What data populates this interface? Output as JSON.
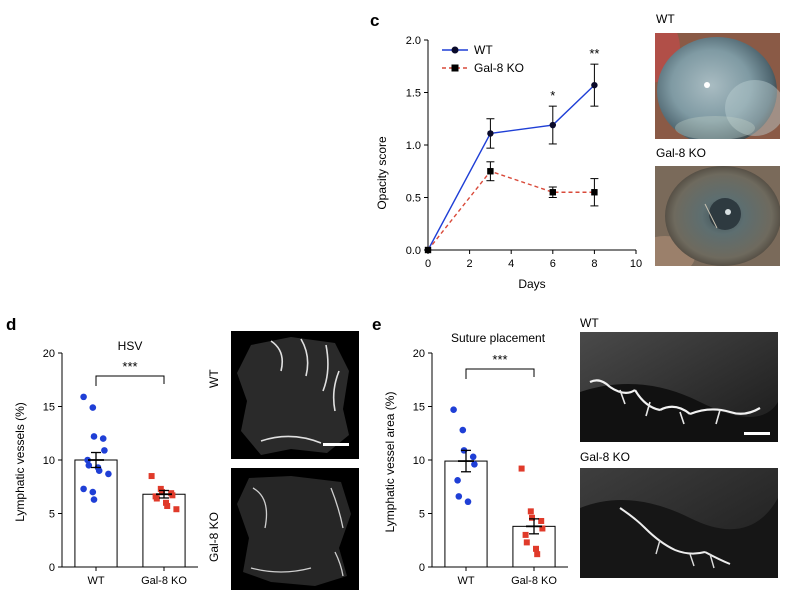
{
  "panels": {
    "c": {
      "letter": "c",
      "chart_data": {
        "type": "line",
        "x": [
          0,
          3,
          6,
          8
        ],
        "xlabel": "Days",
        "ylabel": "Opacity score",
        "xlim": [
          0,
          10
        ],
        "ylim": [
          0,
          2.0
        ],
        "xticks": [
          "0",
          "2",
          "4",
          "6",
          "8",
          "10"
        ],
        "yticks": [
          "0.0",
          "0.5",
          "1.0",
          "1.5",
          "2.0"
        ],
        "legend": "top-left",
        "series": [
          {
            "name": "WT",
            "values": [
              0,
              1.11,
              1.19,
              1.57
            ],
            "errors": [
              0,
              0.14,
              0.18,
              0.2
            ],
            "color": "#1f3fd6",
            "marker": "circle",
            "dash": "solid"
          },
          {
            "name": "Gal-8 KO",
            "values": [
              0,
              0.75,
              0.55,
              0.55
            ],
            "errors": [
              0,
              0.09,
              0.05,
              0.13
            ],
            "color": "#d94a3a",
            "marker": "square",
            "dash": "dashed"
          }
        ],
        "annotations": [
          {
            "x": 6,
            "text": "*"
          },
          {
            "x": 8,
            "text": "**"
          }
        ]
      },
      "images": [
        {
          "label": "WT"
        },
        {
          "label": "Gal-8 KO"
        }
      ]
    },
    "d": {
      "letter": "d",
      "chart_data": {
        "type": "bar",
        "title": "HSV",
        "categories": [
          "WT",
          "Gal-8 KO"
        ],
        "values": [
          10.0,
          6.8
        ],
        "errors": [
          0.7,
          0.35
        ],
        "ylabel": "Lymphatic vessels (%)",
        "ylim": [
          0,
          20
        ],
        "yticks": [
          "0",
          "5",
          "10",
          "15",
          "20"
        ],
        "significance": "***",
        "colors": [
          "#1f3fd6",
          "#e03a2a"
        ],
        "points": [
          [
            15.9,
            14.9,
            12.2,
            12.0,
            10.9,
            10.0,
            9.5,
            9.3,
            9.0,
            8.7,
            7.3,
            7.0,
            6.3
          ],
          [
            8.5,
            7.3,
            7.0,
            6.9,
            6.7,
            6.6,
            6.4,
            6.0,
            5.7,
            5.4
          ]
        ]
      },
      "images": [
        {
          "label": "WT"
        },
        {
          "label": "Gal-8 KO"
        }
      ]
    },
    "e": {
      "letter": "e",
      "chart_data": {
        "type": "bar",
        "title": "Suture placement",
        "categories": [
          "WT",
          "Gal-8 KO"
        ],
        "values": [
          9.9,
          3.8
        ],
        "errors": [
          1.0,
          0.7
        ],
        "ylabel": "Lymphatic vessel area (%)",
        "ylim": [
          0,
          20
        ],
        "yticks": [
          "0",
          "5",
          "10",
          "15",
          "20"
        ],
        "significance": "***",
        "colors": [
          "#1f3fd6",
          "#e03a2a"
        ],
        "points": [
          [
            14.7,
            12.8,
            10.9,
            10.3,
            9.6,
            8.1,
            6.6,
            6.1
          ],
          [
            9.2,
            5.2,
            4.6,
            4.3,
            3.6,
            3.0,
            2.3,
            1.7,
            1.2
          ]
        ]
      },
      "images": [
        {
          "label": "WT"
        },
        {
          "label": "Gal-8 KO"
        }
      ]
    }
  }
}
